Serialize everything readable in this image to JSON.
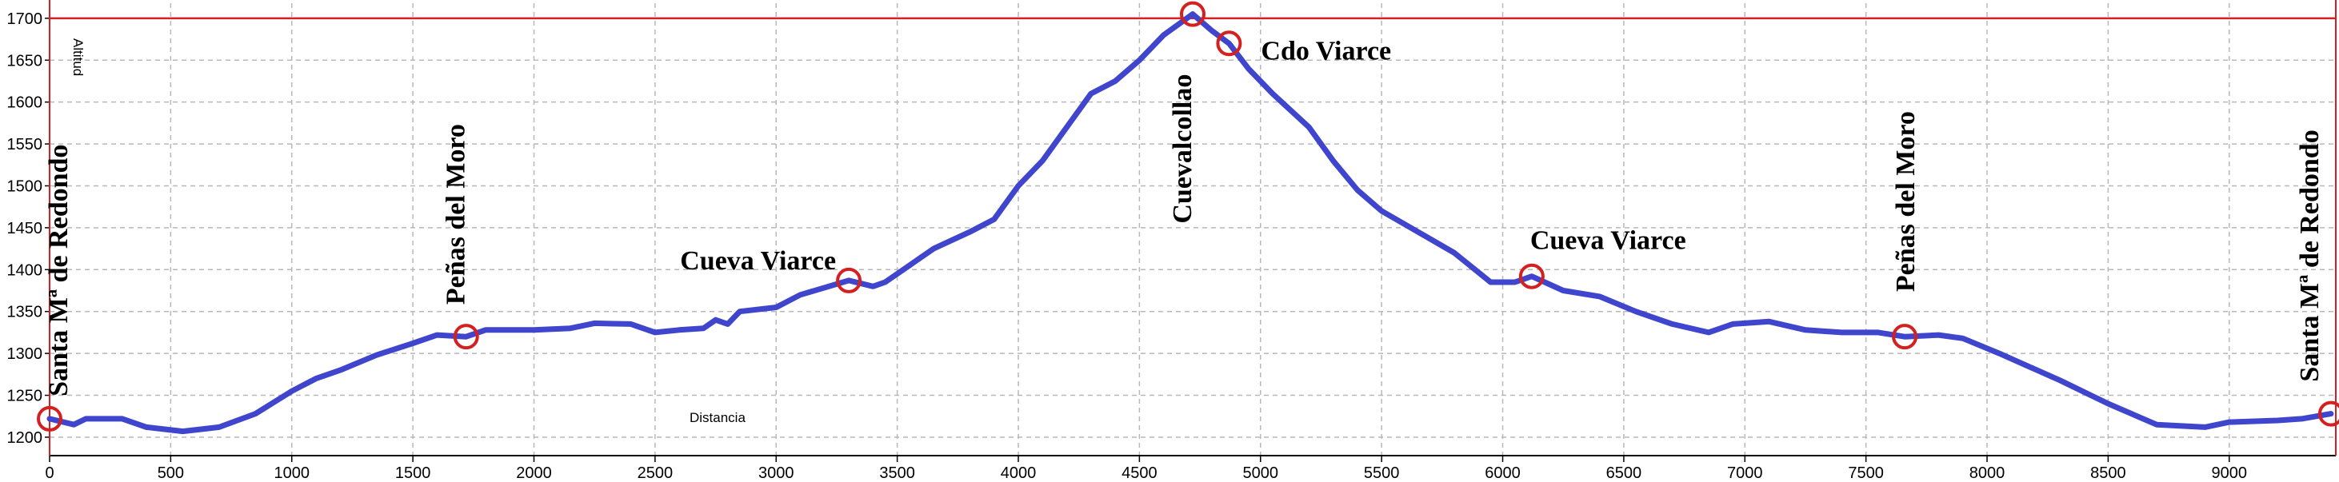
{
  "chart_data": {
    "type": "line",
    "y_axis_label": "Altitud",
    "x_axis_label": "Distancia",
    "xlim": [
      0,
      9440
    ],
    "ylim": [
      1178,
      1718
    ],
    "xticks": [
      0,
      500,
      1000,
      1500,
      2000,
      2500,
      3000,
      3500,
      4000,
      4500,
      5000,
      5500,
      6000,
      6500,
      7000,
      7500,
      8000,
      8500,
      9000
    ],
    "yticks": [
      1200,
      1250,
      1300,
      1350,
      1400,
      1450,
      1500,
      1550,
      1600,
      1650,
      1700
    ],
    "grid": true,
    "reference_line": {
      "value": 1700,
      "color": "#d42020"
    },
    "series": [
      {
        "color": "#3f45cc",
        "x": [
          0,
          100,
          150,
          300,
          400,
          550,
          700,
          850,
          1000,
          1100,
          1200,
          1350,
          1500,
          1600,
          1720,
          1800,
          2000,
          2150,
          2250,
          2400,
          2500,
          2600,
          2700,
          2750,
          2800,
          2850,
          3000,
          3100,
          3300,
          3400,
          3450,
          3550,
          3650,
          3800,
          3900,
          4000,
          4100,
          4200,
          4300,
          4400,
          4500,
          4600,
          4720,
          4800,
          4870,
          4950,
          5050,
          5200,
          5300,
          5400,
          5500,
          5650,
          5800,
          5950,
          6050,
          6120,
          6250,
          6400,
          6550,
          6700,
          6850,
          6950,
          7100,
          7250,
          7400,
          7550,
          7660,
          7800,
          7900,
          8050,
          8300,
          8500,
          8700,
          8900,
          9000,
          9200,
          9300,
          9420
        ],
        "values": [
          1222,
          1215,
          1222,
          1222,
          1212,
          1207,
          1212,
          1228,
          1255,
          1270,
          1280,
          1298,
          1312,
          1322,
          1320,
          1328,
          1328,
          1330,
          1336,
          1335,
          1325,
          1328,
          1330,
          1340,
          1335,
          1350,
          1355,
          1370,
          1387,
          1380,
          1385,
          1405,
          1425,
          1445,
          1460,
          1500,
          1530,
          1570,
          1610,
          1625,
          1650,
          1680,
          1705,
          1685,
          1670,
          1640,
          1610,
          1570,
          1530,
          1495,
          1470,
          1445,
          1420,
          1385,
          1385,
          1392,
          1375,
          1368,
          1350,
          1335,
          1325,
          1335,
          1338,
          1328,
          1325,
          1325,
          1320,
          1322,
          1318,
          1300,
          1268,
          1240,
          1215,
          1212,
          1218,
          1220,
          1222,
          1228
        ]
      }
    ],
    "waypoints": [
      {
        "name": "Santa Mª de Redondo",
        "x": 0,
        "y": 1222
      },
      {
        "name": "Peñas del Moro",
        "x": 1720,
        "y": 1320
      },
      {
        "name": "Cueva Viarce",
        "x": 3300,
        "y": 1387
      },
      {
        "name": "Cuevalcollao",
        "x": 4720,
        "y": 1705
      },
      {
        "name": "Cdo Viarce",
        "x": 4870,
        "y": 1670
      },
      {
        "name": "Cueva Viarce",
        "x": 6120,
        "y": 1392
      },
      {
        "name": "Peñas del Moro",
        "x": 7660,
        "y": 1320
      },
      {
        "name": "Santa Mª de Redondo",
        "x": 9420,
        "y": 1228
      }
    ],
    "waypoint_color": "#d42020"
  }
}
